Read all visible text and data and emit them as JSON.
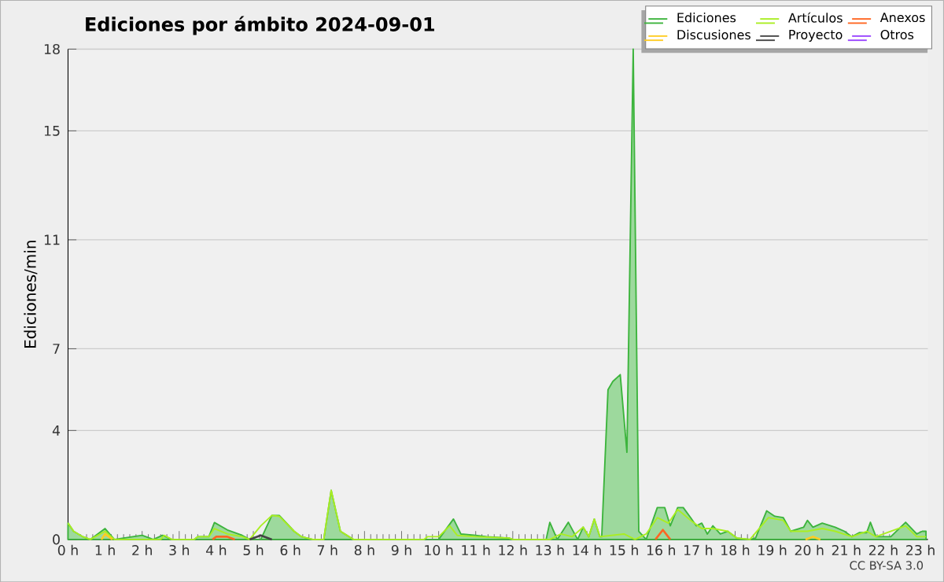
{
  "chart_data": {
    "type": "line",
    "title": "Ediciones por ámbito  2024-09-01",
    "ylabel": "Ediciones/min",
    "xlim": [
      0,
      23.2
    ],
    "xticks": [
      {
        "value": 0,
        "label": "0 h"
      },
      {
        "value": 1,
        "label": "1 h"
      },
      {
        "value": 2,
        "label": "2 h"
      },
      {
        "value": 3,
        "label": "3 h"
      },
      {
        "value": 4,
        "label": "4 h"
      },
      {
        "value": 5,
        "label": "5 h"
      },
      {
        "value": 6,
        "label": "6 h"
      },
      {
        "value": 7,
        "label": "7 h"
      },
      {
        "value": 8,
        "label": "8 h"
      },
      {
        "value": 9,
        "label": "9 h"
      },
      {
        "value": 10,
        "label": "10 h"
      },
      {
        "value": 11,
        "label": "11 h"
      },
      {
        "value": 12,
        "label": "12 h"
      },
      {
        "value": 13,
        "label": "13 h"
      },
      {
        "value": 14,
        "label": "14 h"
      },
      {
        "value": 15,
        "label": "15 h"
      },
      {
        "value": 16,
        "label": "16 h"
      },
      {
        "value": 17,
        "label": "17 h"
      },
      {
        "value": 18,
        "label": "18 h"
      },
      {
        "value": 19,
        "label": "19 h"
      },
      {
        "value": 20,
        "label": "20 h"
      },
      {
        "value": 21,
        "label": "21 h"
      },
      {
        "value": 22,
        "label": "22 h"
      },
      {
        "value": 23,
        "label": "23 h"
      }
    ],
    "ylim": [
      0,
      18
    ],
    "yticks": [
      0,
      4,
      7,
      11,
      15,
      18
    ],
    "grid": "y",
    "legend": "top right",
    "marker": "none",
    "line_style": "solid",
    "series": [
      {
        "name": "Ediciones",
        "type": "area",
        "color": "#3cb43c",
        "x": [
          0,
          0.15,
          0.4,
          0.6,
          1.0,
          1.25,
          2.0,
          2.3,
          2.55,
          2.8,
          3.4,
          3.5,
          3.8,
          3.95,
          4.3,
          4.7,
          4.9,
          5.2,
          5.5,
          5.7,
          6.1,
          6.3,
          6.6,
          6.9,
          7.1,
          7.35,
          7.7,
          10.0,
          10.4,
          10.6,
          11.0,
          11.3,
          11.9,
          12.0,
          12.9,
          13.0,
          13.2,
          13.5,
          13.75,
          13.9,
          14.05,
          14.2,
          14.35,
          14.4,
          14.57,
          14.7,
          14.9,
          15.08,
          15.25,
          15.4,
          15.6,
          15.9,
          16.1,
          16.25,
          16.45,
          16.6,
          16.8,
          16.95,
          17.1,
          17.25,
          17.4,
          17.6,
          17.8,
          18.05,
          18.4,
          18.55,
          18.85,
          19.07,
          19.3,
          19.5,
          19.85,
          19.95,
          20.1,
          20.35,
          20.7,
          20.95,
          21.15,
          21.35,
          21.55,
          21.65,
          21.8,
          22.2,
          22.6,
          22.9,
          23.05,
          23.15
        ],
        "values": [
          0.6,
          0.3,
          0.1,
          0,
          0.4,
          0,
          0.15,
          0,
          0.15,
          0,
          0,
          0.1,
          0.1,
          0.62,
          0.35,
          0.15,
          0,
          0,
          0.88,
          0.88,
          0.3,
          0.1,
          0,
          0,
          1.8,
          0.3,
          0,
          0,
          0.75,
          0.2,
          0.15,
          0.1,
          0.05,
          0,
          0,
          0.63,
          0,
          0.63,
          0,
          0.45,
          0.1,
          0.75,
          0.1,
          0.1,
          5.5,
          5.8,
          6.05,
          3.2,
          18,
          0.3,
          0,
          1.17,
          1.17,
          0.5,
          1.17,
          1.17,
          0.8,
          0.5,
          0.6,
          0.2,
          0.5,
          0.2,
          0.3,
          0.05,
          0,
          0.05,
          1.05,
          0.85,
          0.8,
          0.3,
          0.45,
          0.7,
          0.45,
          0.6,
          0.45,
          0.3,
          0.1,
          0.25,
          0.25,
          0.63,
          0.1,
          0.1,
          0.63,
          0.2,
          0.3,
          0.3
        ]
      },
      {
        "name": "Artículos",
        "color": "#aaee22",
        "x": [
          0,
          0.15,
          0.4,
          0.6,
          1.0,
          1.25,
          2.5,
          2.6,
          2.8,
          3.4,
          3.5,
          3.8,
          3.95,
          4.3,
          4.7,
          4.9,
          5.2,
          5.5,
          5.7,
          6.1,
          6.3,
          6.6,
          6.9,
          7.1,
          7.35,
          7.7,
          9.6,
          9.7,
          10.0,
          10.3,
          10.5,
          11.0,
          11.9,
          12.0,
          13.0,
          13.3,
          13.6,
          13.9,
          14.05,
          14.2,
          14.35,
          15.0,
          15.3,
          15.6,
          15.9,
          16.2,
          16.45,
          16.8,
          17.1,
          17.4,
          17.8,
          18.05,
          18.4,
          18.9,
          19.3,
          19.5,
          19.95,
          20.35,
          20.7,
          21.15,
          21.55,
          21.8,
          22.6,
          22.9,
          23.15
        ],
        "values": [
          0.6,
          0.3,
          0.1,
          0,
          0.3,
          0,
          0,
          0.15,
          0,
          0,
          0.1,
          0.1,
          0.4,
          0.2,
          0.1,
          0,
          0.5,
          0.88,
          0.85,
          0.3,
          0.1,
          0,
          0,
          1.8,
          0.3,
          0,
          0,
          0.1,
          0.1,
          0.5,
          0.15,
          0.1,
          0.05,
          0,
          0,
          0.2,
          0.1,
          0.45,
          0.1,
          0.75,
          0.1,
          0.2,
          0,
          0.2,
          0.8,
          0.6,
          1.1,
          0.7,
          0.4,
          0.4,
          0.3,
          0.05,
          0,
          0.8,
          0.7,
          0.3,
          0.3,
          0.4,
          0.3,
          0.1,
          0.3,
          0.1,
          0.5,
          0.1,
          0.1
        ]
      },
      {
        "name": "Anexos",
        "color": "#ff6622",
        "x": [
          3.9,
          4.0,
          4.3,
          4.5,
          10.0,
          15.85,
          16.05,
          16.25
        ],
        "values": [
          0,
          0.1,
          0.1,
          0,
          null,
          0,
          0.35,
          0
        ]
      },
      {
        "name": "Discusiones",
        "color": "#ffcc22",
        "x": [
          0.9,
          1.0,
          1.2,
          10.0,
          19.9,
          20.1,
          20.3
        ],
        "values": [
          0,
          0.2,
          0,
          null,
          0,
          0.1,
          0
        ]
      },
      {
        "name": "Proyecto",
        "color": "#444444",
        "x": [
          4.9,
          5.2,
          5.5
        ],
        "values": [
          0,
          0.15,
          0
        ]
      },
      {
        "name": "Otros",
        "color": "#9944ff"
      }
    ],
    "annotations": [
      "CC BY-SA 3.0"
    ]
  }
}
